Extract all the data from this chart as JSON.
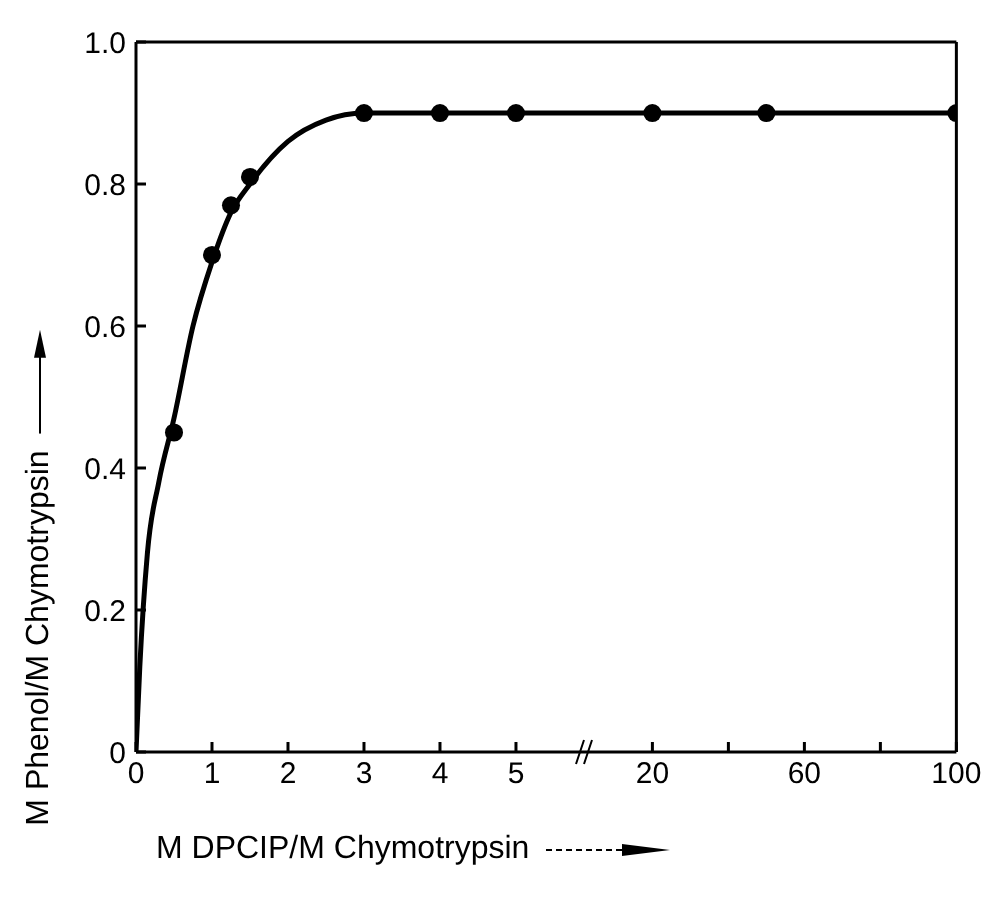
{
  "chart_data": [
    {
      "type": "scatter",
      "xlabel": "M DPCIP/M Chymotrypsin",
      "ylabel": "M Phenol/M Chymotrypsin",
      "xlim": [
        0,
        5.9
      ],
      "xticks": [
        0,
        1,
        2,
        3,
        4,
        5
      ],
      "ylim": [
        0,
        1
      ],
      "yticks": [
        0,
        0.2,
        0.4,
        0.6,
        0.8,
        {
          "value": 1,
          "label": "1.0"
        }
      ],
      "series": [
        {
          "color": "#000000",
          "marker": "circle",
          "x": [
            0.5,
            1,
            1.25,
            1.5,
            3,
            4,
            5
          ],
          "values": [
            0.45,
            0.7,
            0.77,
            0.81,
            0.9,
            0.9,
            0.9
          ]
        },
        {
          "type": "line",
          "color": "#000000",
          "line_style": "solid",
          "x": [
            0,
            0.05,
            0.15,
            0.3,
            0.5,
            0.75,
            1,
            1.25,
            1.5,
            2,
            2.5,
            3,
            5,
            5.9
          ],
          "values": [
            0,
            0.12,
            0.28,
            0.38,
            0.47,
            0.6,
            0.69,
            0.76,
            0.8,
            0.86,
            0.89,
            0.9,
            0.9,
            0.9
          ]
        }
      ]
    },
    {
      "type": "scatter",
      "tick_labels": "x",
      "xlim": [
        2,
        100
      ],
      "xticks": [
        20,
        {
          "value": 40,
          "label": null
        },
        60,
        {
          "value": 80,
          "label": null
        },
        100
      ],
      "ylim": [
        0,
        1
      ],
      "series": [
        {
          "color": "#000000",
          "marker": "circle",
          "x": [
            20,
            50,
            100
          ],
          "values": [
            0.9,
            0.9,
            0.9
          ]
        },
        {
          "type": "line",
          "color": "#000000",
          "line_style": "solid",
          "x": [
            2,
            20,
            100
          ],
          "values": [
            0.9,
            0.9,
            0.9
          ]
        }
      ]
    }
  ]
}
